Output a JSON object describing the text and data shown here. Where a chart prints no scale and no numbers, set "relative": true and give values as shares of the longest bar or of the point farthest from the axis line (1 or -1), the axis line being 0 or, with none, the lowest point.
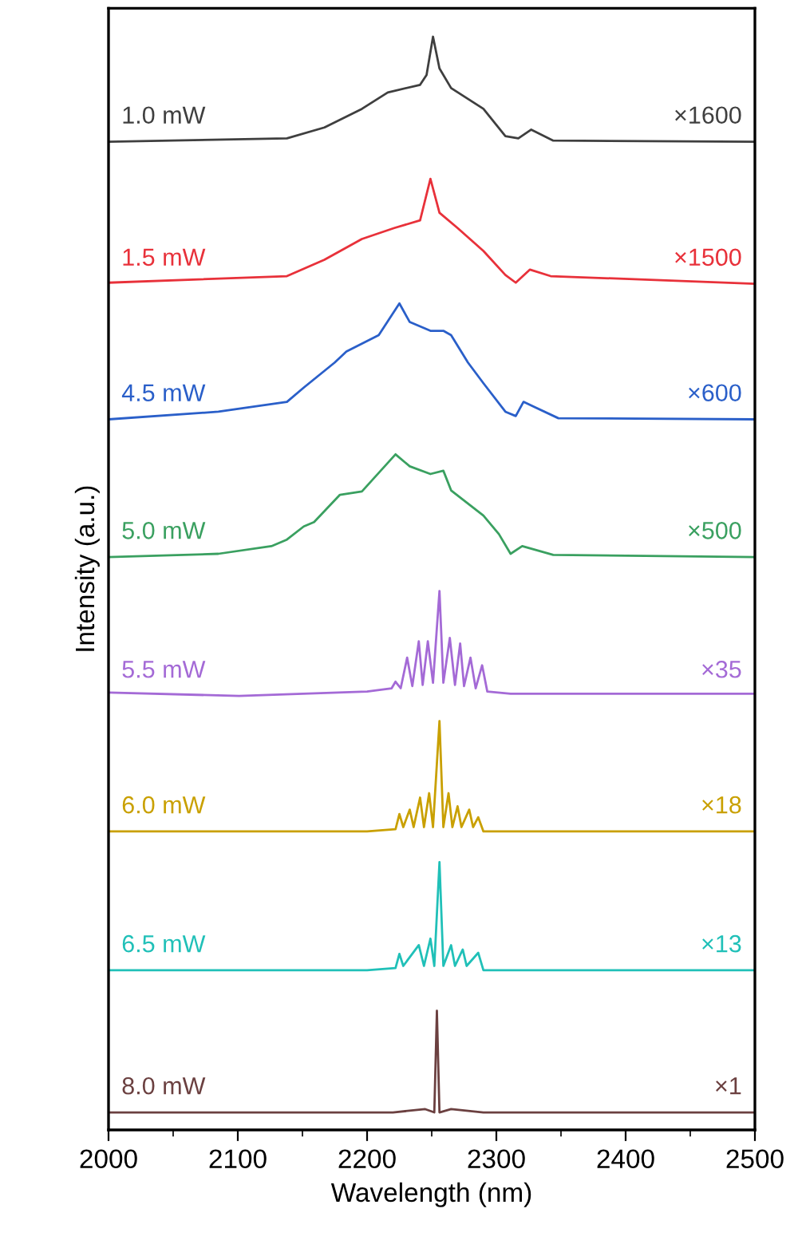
{
  "chart_data": {
    "type": "line",
    "relative": true,
    "xlabel": "Wavelength (nm)",
    "ylabel": "Intensity (a.u.)",
    "legend": false,
    "grid": false,
    "line_style": "solid",
    "marker": "none",
    "xlim": [
      2000,
      2500
    ],
    "xticks": [
      2000,
      {
        "value": 2050,
        "label": null
      },
      2100,
      {
        "value": 2150,
        "label": null
      },
      2200,
      {
        "value": 2250,
        "label": null
      },
      2300,
      {
        "value": 2350,
        "label": null
      },
      2400,
      {
        "value": 2450,
        "label": null
      },
      2500
    ],
    "annotations": [
      "×1600",
      "×1500",
      "×600",
      "×500",
      "×35",
      "×18",
      "×13",
      "×1"
    ],
    "series": [
      {
        "name": "1.0 mW",
        "color": "#3f3f3f",
        "x": [
          2000,
          2138,
          2167,
          2196,
          2216,
          2241,
          2246,
          2251,
          2256,
          2265,
          2290,
          2307,
          2317,
          2327,
          2344,
          2500
        ],
        "values": [
          0.904,
          0.907,
          0.917,
          0.934,
          0.949,
          0.956,
          0.965,
          1.0,
          0.971,
          0.953,
          0.934,
          0.909,
          0.907,
          0.915,
          0.905,
          0.904
        ]
      },
      {
        "name": "1.5 mW",
        "color": "#e8313a",
        "x": [
          2000,
          2138,
          2167,
          2196,
          2221,
          2241,
          2249,
          2256,
          2270,
          2290,
          2307,
          2315,
          2326,
          2342,
          2500
        ],
        "values": [
          0.775,
          0.781,
          0.796,
          0.815,
          0.825,
          0.832,
          0.87,
          0.839,
          0.825,
          0.804,
          0.782,
          0.775,
          0.787,
          0.781,
          0.774
        ]
      },
      {
        "name": "4.5 mW",
        "color": "#2a5fc9",
        "x": [
          2000,
          2085,
          2138,
          2151,
          2175,
          2184,
          2209,
          2225,
          2233,
          2249,
          2259,
          2265,
          2278,
          2290,
          2307,
          2315,
          2321,
          2348,
          2500
        ],
        "values": [
          0.65,
          0.657,
          0.666,
          0.679,
          0.702,
          0.712,
          0.727,
          0.756,
          0.739,
          0.731,
          0.731,
          0.727,
          0.702,
          0.683,
          0.657,
          0.653,
          0.666,
          0.651,
          0.65
        ]
      },
      {
        "name": "5.0 mW",
        "color": "#3aa060",
        "x": [
          2000,
          2085,
          2126,
          2138,
          2151,
          2159,
          2179,
          2196,
          2222,
          2233,
          2249,
          2259,
          2265,
          2290,
          2302,
          2311,
          2320,
          2344,
          2500
        ],
        "values": [
          0.524,
          0.527,
          0.534,
          0.54,
          0.552,
          0.556,
          0.581,
          0.584,
          0.618,
          0.607,
          0.6,
          0.603,
          0.585,
          0.562,
          0.545,
          0.527,
          0.534,
          0.526,
          0.524
        ]
      },
      {
        "name": "5.5 mW",
        "color": "#a46ad6",
        "x": [
          2000,
          2101,
          2200,
          2219,
          2222,
          2226,
          2231,
          2235,
          2240,
          2243,
          2247,
          2251,
          2256,
          2259,
          2264,
          2268,
          2272,
          2275,
          2280,
          2284,
          2289,
          2293,
          2311,
          2500
        ],
        "values": [
          0.4,
          0.397,
          0.401,
          0.404,
          0.41,
          0.404,
          0.432,
          0.406,
          0.447,
          0.407,
          0.447,
          0.409,
          0.493,
          0.409,
          0.45,
          0.407,
          0.445,
          0.406,
          0.432,
          0.404,
          0.425,
          0.401,
          0.399,
          0.399
        ]
      },
      {
        "name": "6.0 mW",
        "color": "#c9a000",
        "x": [
          2000,
          2200,
          2222,
          2225,
          2228,
          2233,
          2236,
          2241,
          2244,
          2248,
          2251,
          2256,
          2259,
          2263,
          2266,
          2270,
          2273,
          2279,
          2282,
          2286,
          2290,
          2500
        ],
        "values": [
          0.273,
          0.273,
          0.275,
          0.289,
          0.277,
          0.293,
          0.277,
          0.304,
          0.277,
          0.308,
          0.277,
          0.374,
          0.277,
          0.308,
          0.277,
          0.296,
          0.277,
          0.293,
          0.277,
          0.286,
          0.273,
          0.273
        ]
      },
      {
        "name": "6.5 mW",
        "color": "#20c0b8",
        "x": [
          2000,
          2200,
          2222,
          2225,
          2228,
          2240,
          2244,
          2249,
          2252,
          2256,
          2259,
          2265,
          2268,
          2274,
          2277,
          2286,
          2290,
          2500
        ],
        "values": [
          0.146,
          0.146,
          0.148,
          0.161,
          0.15,
          0.169,
          0.15,
          0.175,
          0.15,
          0.245,
          0.15,
          0.169,
          0.15,
          0.165,
          0.15,
          0.162,
          0.146,
          0.146
        ]
      },
      {
        "name": "8.0 mW",
        "color": "#6b4040",
        "x": [
          2000,
          2220,
          2245,
          2252,
          2254,
          2256,
          2265,
          2290,
          2500
        ],
        "values": [
          0.016,
          0.016,
          0.019,
          0.016,
          0.109,
          0.016,
          0.019,
          0.016,
          0.016
        ]
      }
    ]
  }
}
